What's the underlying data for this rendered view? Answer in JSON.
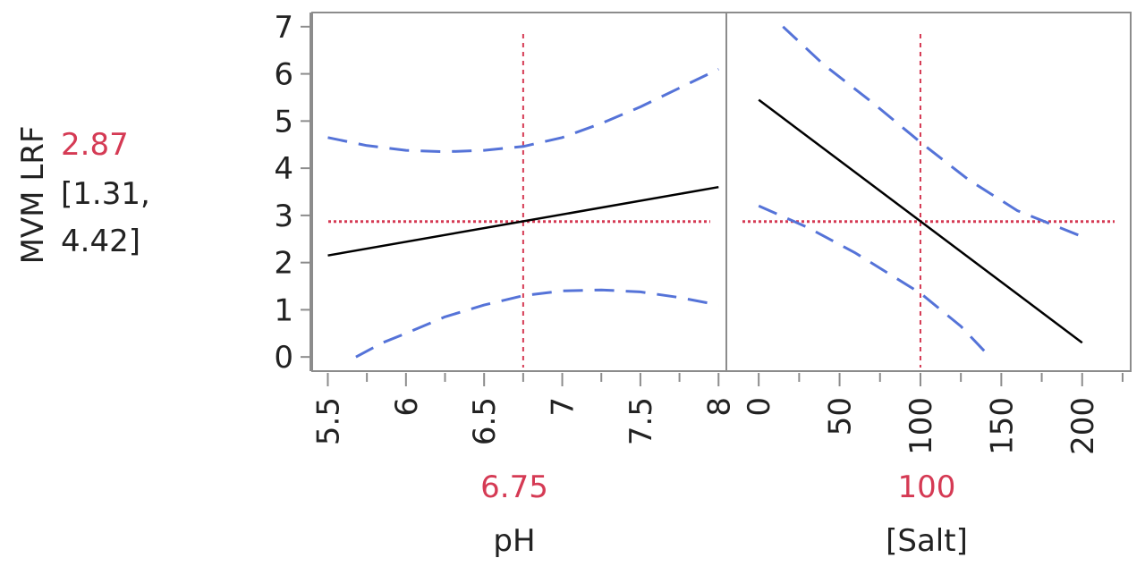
{
  "chart_data": {
    "type": "line",
    "response": {
      "label": "MVM LRF",
      "current_value": "2.87",
      "ci_text": [
        "[1.31,",
        "4.42]"
      ],
      "ylim": [
        -0.3,
        7.3
      ],
      "yticks": [
        "0",
        "1",
        "2",
        "3",
        "4",
        "5",
        "6",
        "7"
      ]
    },
    "panels": [
      {
        "factor": "pH",
        "current_value": "6.75",
        "xlim": [
          5.4,
          8.05
        ],
        "xticks": [
          "5.5",
          "6",
          "6.5",
          "7",
          "7.5",
          "8"
        ],
        "minor_ticks": [
          5.75,
          6.25,
          6.75,
          7.25,
          7.75
        ],
        "series": [
          {
            "role": "prediction",
            "color": "#000000",
            "x": [
              5.5,
              8.0
            ],
            "y": [
              2.15,
              3.6
            ]
          },
          {
            "role": "upper-ci",
            "color": "#5573d8",
            "x": [
              5.5,
              5.75,
              6.0,
              6.25,
              6.5,
              6.75,
              7.0,
              7.25,
              7.5,
              7.75,
              8.0
            ],
            "y": [
              4.65,
              4.48,
              4.38,
              4.35,
              4.38,
              4.46,
              4.65,
              4.95,
              5.3,
              5.7,
              6.1
            ]
          },
          {
            "role": "lower-ci",
            "color": "#5573d8",
            "x": [
              5.68,
              5.85,
              6.0,
              6.25,
              6.5,
              6.75,
              7.0,
              7.25,
              7.5,
              7.75,
              8.0
            ],
            "y": [
              0.0,
              0.3,
              0.5,
              0.85,
              1.1,
              1.3,
              1.4,
              1.42,
              1.38,
              1.26,
              1.1
            ]
          }
        ]
      },
      {
        "factor": "[Salt]",
        "current_value": "100",
        "xlim": [
          -20,
          230
        ],
        "xticks": [
          "0",
          "50",
          "100",
          "150",
          "200"
        ],
        "minor_ticks": [
          25,
          75,
          125,
          175,
          225
        ],
        "series": [
          {
            "role": "prediction",
            "color": "#000000",
            "x": [
              0,
              200
            ],
            "y": [
              5.45,
              0.3
            ]
          },
          {
            "role": "upper-ci",
            "color": "#5573d8",
            "x": [
              15,
              40,
              70,
              100,
              130,
              160,
              200
            ],
            "y": [
              7.0,
              6.2,
              5.4,
              4.55,
              3.75,
              3.1,
              2.55
            ]
          },
          {
            "role": "lower-ci",
            "color": "#5573d8",
            "x": [
              0,
              30,
              60,
              100,
              125,
              143
            ],
            "y": [
              3.2,
              2.75,
              2.2,
              1.35,
              0.65,
              0.0
            ]
          }
        ]
      }
    ],
    "colors": {
      "reference": "#d53a54",
      "ci": "#5573d8",
      "prediction": "#000000",
      "frame": "#8c8c8c"
    }
  }
}
